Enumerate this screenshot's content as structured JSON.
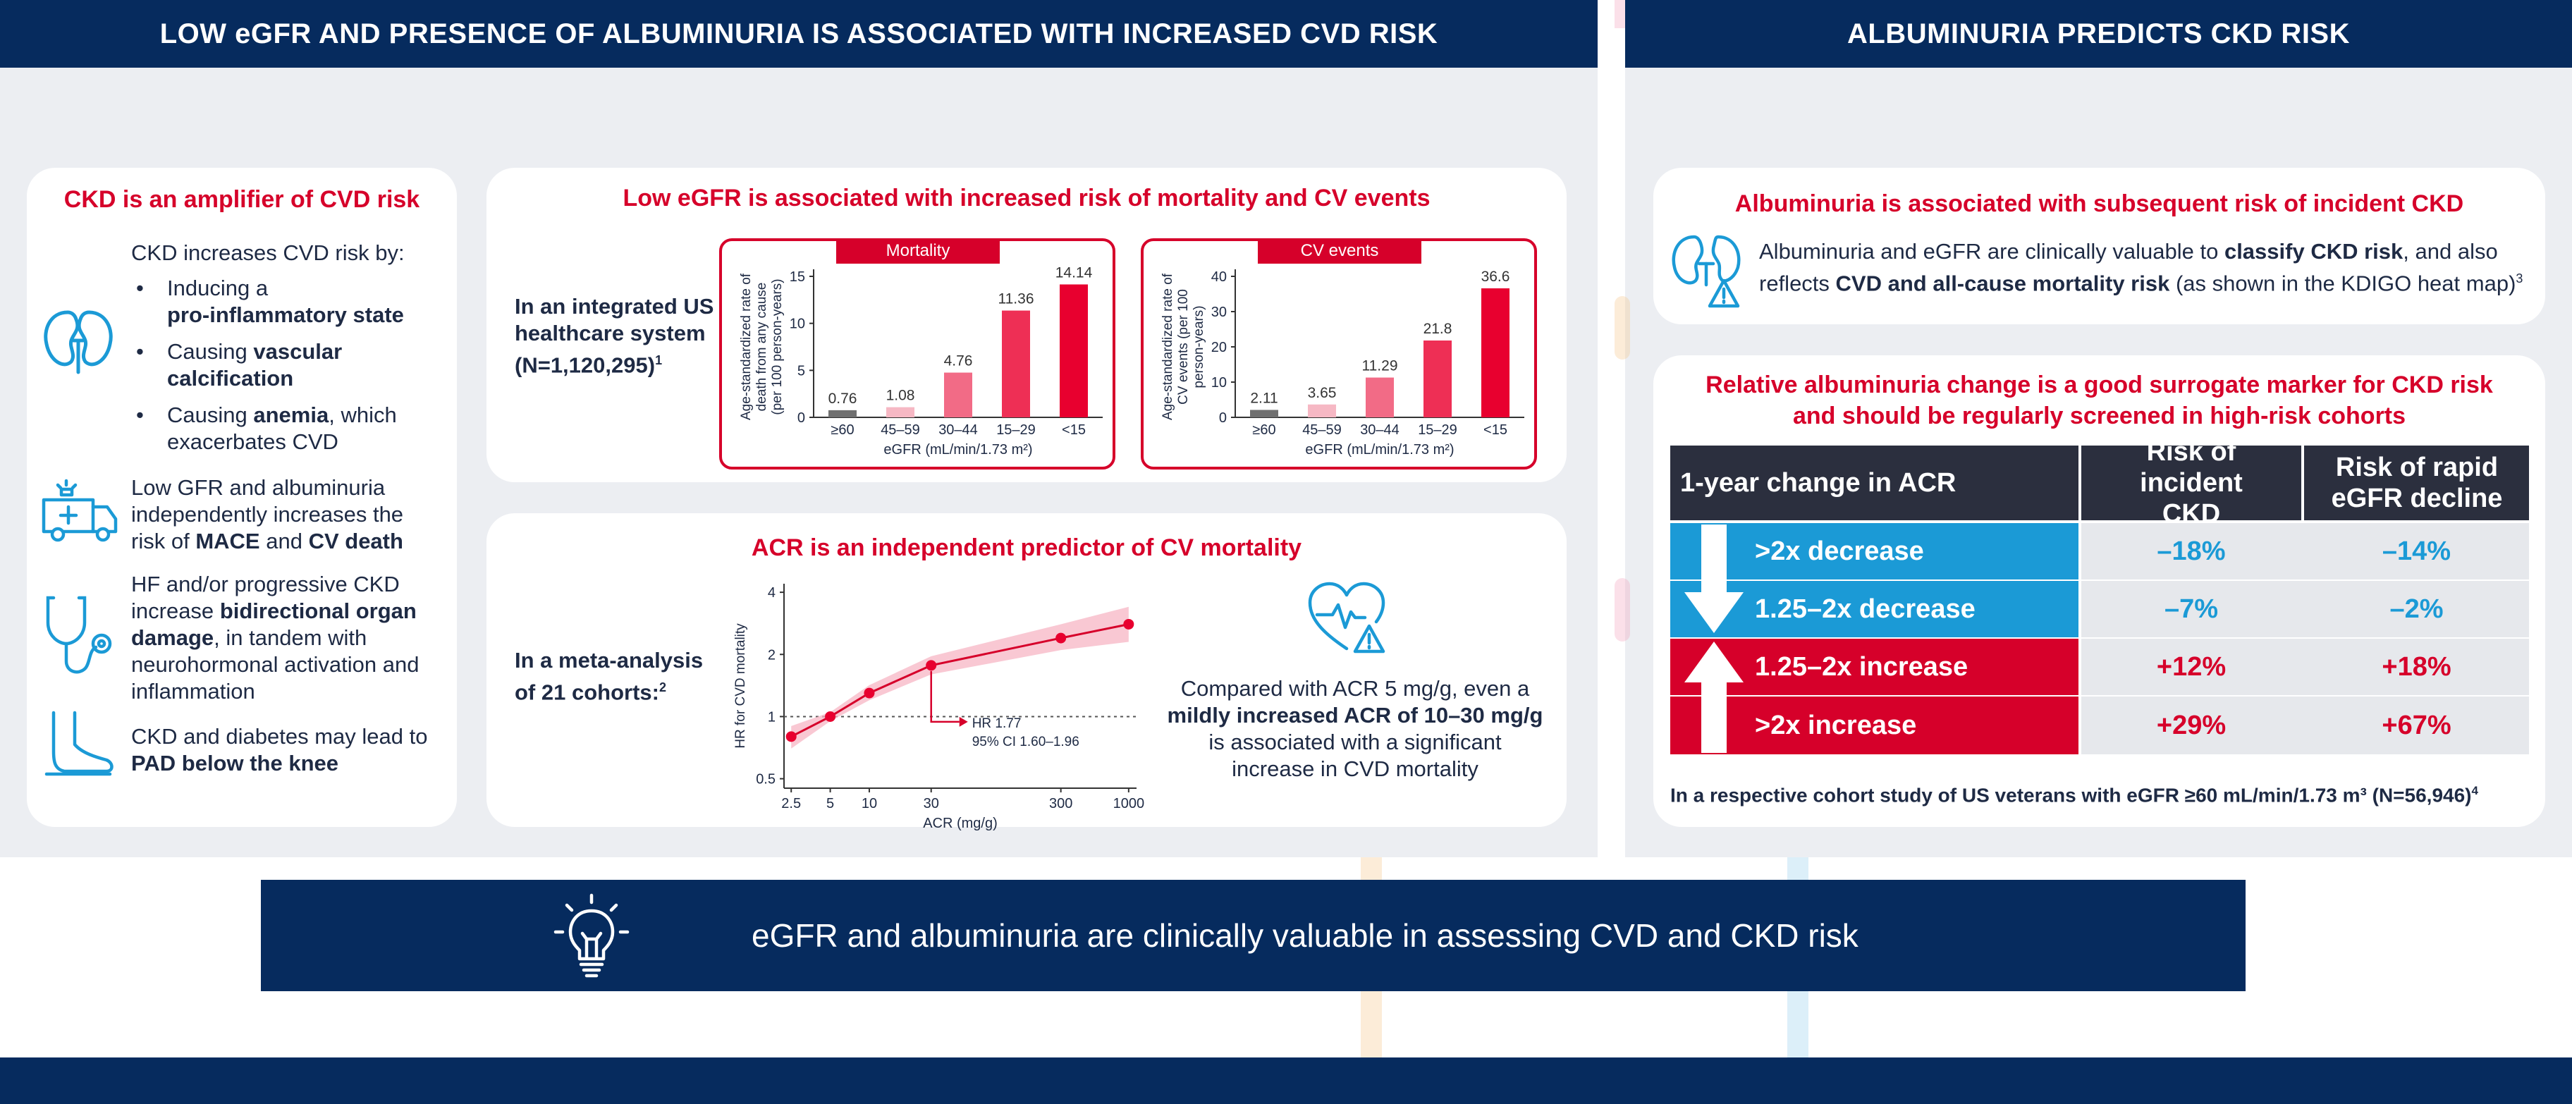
{
  "left_header": "LOW eGFR AND PRESENCE OF ALBUMINURIA IS ASSOCIATED WITH INCREASED CVD RISK",
  "right_header": "ALBUMINURIA PREDICTS CKD RISK",
  "amplifier": {
    "title": "CKD is an amplifier of CVD risk",
    "intro": "CKD increases CVD risk by:",
    "b1_pre": "Inducing a",
    "b1_bold": "pro-inflammatory state",
    "b2_pre": "Causing",
    "b2_bold": "vascular calcification",
    "b3_pre": "Causing",
    "b3_bold": "anemia",
    "b3_post": ", which exacerbates CVD",
    "p2_pre": "Low GFR and albuminuria independently increases the risk of",
    "p2_b1": "MACE",
    "p2_mid": "and",
    "p2_b2": "CV death",
    "p3_pre": "HF and/or progressive CKD increase",
    "p3_bold": "bidirectional organ damage",
    "p3_post": ", in tandem with neurohormonal activation and inflammation",
    "p4_pre": "CKD and diabetes may lead to",
    "p4_bold": "PAD below the knee"
  },
  "egfr_panel": {
    "title": "Low eGFR is associated with increased risk of mortality and CV events",
    "study": "In an integrated US healthcare system (N=1,120,295)",
    "study_sup": "1",
    "xlabel": "eGFR (mL/min/1.73 m²)"
  },
  "acr_panel": {
    "title": "ACR is an independent predictor of CV mortality",
    "study": "In a meta-analysis of 21 cohorts:",
    "study_sup": "2",
    "hr_label": "HR 1.77",
    "ci_label": "95% CI 1.60–1.96",
    "compare_pre": "Compared with ACR 5 mg/g, even a",
    "compare_bold": "mildly increased ACR of 10–30 mg/g",
    "compare_post": "is associated with a significant increase in CVD mortality"
  },
  "albuminuria_panel": {
    "title": "Albuminuria is associated with subsequent risk of incident CKD",
    "text_pre": "Albuminuria and eGFR are clinically valuable to",
    "text_b1": "classify CKD risk",
    "text_mid": ", and also reflects",
    "text_b2": "CVD and all-cause mortality risk",
    "text_post": "(as shown in the KDIGO heat map)",
    "text_sup": "3"
  },
  "surrogate_panel": {
    "title_line1": "Relative albuminuria change is a good surrogate marker for CKD risk",
    "title_line2": "and should be regularly screened in high-risk cohorts",
    "headers": [
      "1-year change in ACR",
      "Risk of incident CKD",
      "Risk of rapid eGFR decline"
    ],
    "rows": [
      {
        "label": ">2x decrease",
        "ckd": "–18%",
        "egfr": "–14%"
      },
      {
        "label": "1.25–2x decrease",
        "ckd": "–7%",
        "egfr": "–2%"
      },
      {
        "label": "1.25–2x increase",
        "ckd": "+12%",
        "egfr": "+18%"
      },
      {
        "label": ">2x increase",
        "ckd": "+29%",
        "egfr": "+67%"
      }
    ],
    "footnote": "In a respective cohort study of US veterans with eGFR ≥60 mL/min/1.73 m³ (N=56,946)",
    "footnote_sup": "4"
  },
  "banner": "eGFR and albuminuria are clinically valuable in assessing CVD and CKD risk",
  "colors": {
    "navy": "#062b5e",
    "red": "#d6002a",
    "blue": "#1b9ad6",
    "gray_bg": "#eceef2",
    "dark_header": "#2b2f3e"
  },
  "chart_data": [
    {
      "type": "bar",
      "title": "Mortality",
      "ylabel": "Age-standardized rate of death from any cause (per 100 person-years)",
      "xlabel": "eGFR (mL/min/1.73 m²)",
      "categories": [
        "≥60",
        "45–59",
        "30–44",
        "15–29",
        "<15"
      ],
      "values": [
        0.76,
        1.08,
        4.76,
        11.36,
        14.14
      ],
      "value_labels": [
        "0.76",
        "1.08",
        "4.76",
        "11.36",
        "14.14"
      ],
      "ylim": [
        0,
        15
      ],
      "yticks": [
        0,
        5,
        10,
        15
      ],
      "colors": [
        "#707070",
        "#f6b8c4",
        "#f26b86",
        "#ee2f55",
        "#e8002f"
      ]
    },
    {
      "type": "bar",
      "title": "CV events",
      "ylabel": "Age-standardized rate of CV events (per 100 person-years)",
      "xlabel": "eGFR (mL/min/1.73 m²)",
      "categories": [
        "≥60",
        "45–59",
        "30–44",
        "15–29",
        "<15"
      ],
      "values": [
        2.11,
        3.65,
        11.29,
        21.8,
        36.6
      ],
      "value_labels": [
        "2.11",
        "3.65",
        "11.29",
        "21.8",
        "36.6"
      ],
      "ylim": [
        0,
        40
      ],
      "yticks": [
        0,
        10,
        20,
        30,
        40
      ],
      "colors": [
        "#707070",
        "#f6b8c4",
        "#f26b86",
        "#ee2f55",
        "#e8002f"
      ]
    },
    {
      "type": "line",
      "title": "",
      "ylabel": "HR for CVD mortality",
      "xlabel": "ACR (mg/g)",
      "log_x": true,
      "log_y": true,
      "xticks": [
        2.5,
        5,
        10,
        30,
        300,
        1000
      ],
      "yticks": [
        0.5,
        1,
        2,
        4
      ],
      "x": [
        2.5,
        5,
        10,
        30,
        300,
        1000
      ],
      "y": [
        0.8,
        1.0,
        1.3,
        1.77,
        2.4,
        2.8
      ],
      "ci_low": [
        0.7,
        0.95,
        1.2,
        1.6,
        2.1,
        2.3
      ],
      "ci_high": [
        0.9,
        1.05,
        1.42,
        1.96,
        2.8,
        3.4
      ],
      "ylim": [
        0.45,
        4.4
      ],
      "xlim": [
        2.2,
        1150
      ],
      "reference_line": 1
    }
  ]
}
